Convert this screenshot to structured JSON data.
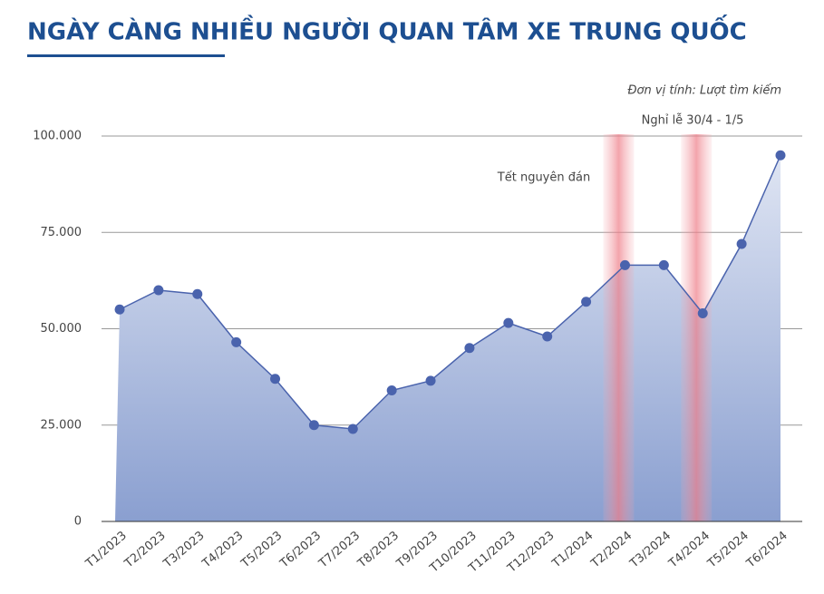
{
  "chart_data": {
    "type": "line",
    "title": "NGÀY CÀNG NHIỀU NGƯỜI QUAN TÂM XE TRUNG QUỐC",
    "unit_note": "Đơn vị tính: Lượt tìm kiếm",
    "annotations": [
      "Tết nguyên đán",
      "Nghỉ lễ 30/4 - 1/5"
    ],
    "categories": [
      "T1/2023",
      "T2/2023",
      "T3/2023",
      "T4/2023",
      "T5/2023",
      "T6/2023",
      "T7/2023",
      "T8/2023",
      "T9/2023",
      "T10/2023",
      "T11/2023",
      "T12/2023",
      "T1/2024",
      "T2/2024",
      "T3/2024",
      "T4/2024",
      "T5/2024",
      "T6/2024"
    ],
    "values": [
      55000,
      60000,
      59000,
      46500,
      37000,
      25000,
      24000,
      34000,
      36500,
      45000,
      51500,
      48000,
      57000,
      66500,
      66500,
      54000,
      72000,
      95000
    ],
    "color": "#4a63ad",
    "ylim": [
      0,
      100000
    ],
    "yticks": [
      0,
      {
        "value": 25000,
        "label": "25.000"
      },
      {
        "value": 50000,
        "label": "50.000"
      },
      {
        "value": 75000,
        "label": "75.000"
      },
      {
        "value": 100000,
        "label": "100.000"
      }
    ],
    "grid": true
  }
}
